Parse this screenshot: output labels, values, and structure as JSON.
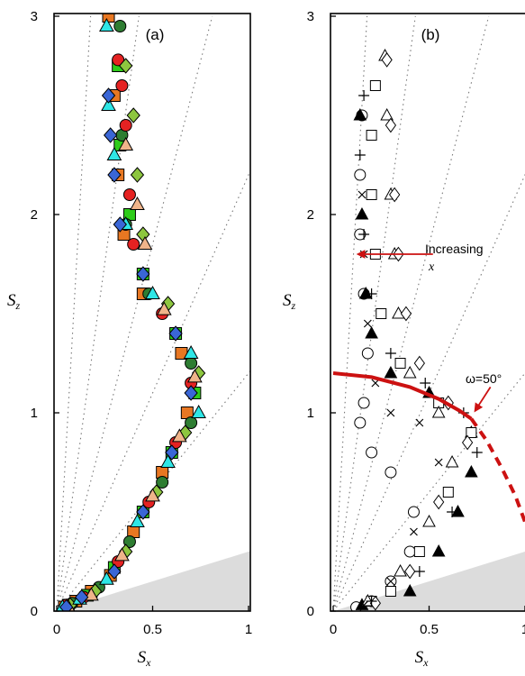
{
  "chart_data": [
    {
      "type": "scatter",
      "panel_label": "(a)",
      "xlabel": "S",
      "xlabel_sub": "x",
      "ylabel": "S",
      "ylabel_sub": "z",
      "xlim": [
        0,
        1
      ],
      "ylim": [
        0,
        3
      ],
      "xticks": [
        "0",
        "0.5",
        "1"
      ],
      "yticks": [
        "0",
        "1",
        "2",
        "3"
      ],
      "gray_sector_slope": 0.3,
      "ray_slopes": [
        1.2,
        2.2,
        3.7,
        7.0,
        17.0
      ],
      "series": [
        {
          "marker": "square",
          "fill": "#e87722",
          "points": [
            [
              0.04,
              0.02
            ],
            [
              0.1,
              0.05
            ],
            [
              0.18,
              0.1
            ],
            [
              0.28,
              0.18
            ],
            [
              0.4,
              0.4
            ],
            [
              0.55,
              0.7
            ],
            [
              0.68,
              1.0
            ],
            [
              0.65,
              1.3
            ],
            [
              0.45,
              1.6
            ],
            [
              0.35,
              1.9
            ],
            [
              0.32,
              2.2
            ],
            [
              0.3,
              2.6
            ],
            [
              0.27,
              3.0
            ]
          ]
        },
        {
          "marker": "square",
          "fill": "#2ecc1a",
          "points": [
            [
              0.06,
              0.03
            ],
            [
              0.16,
              0.08
            ],
            [
              0.3,
              0.22
            ],
            [
              0.45,
              0.5
            ],
            [
              0.6,
              0.8
            ],
            [
              0.72,
              1.1
            ],
            [
              0.62,
              1.4
            ],
            [
              0.45,
              1.7
            ],
            [
              0.38,
              2.0
            ],
            [
              0.33,
              2.35
            ],
            [
              0.32,
              2.75
            ]
          ]
        },
        {
          "marker": "circle",
          "fill": "#2e7d32",
          "points": [
            [
              0.08,
              0.04
            ],
            [
              0.22,
              0.12
            ],
            [
              0.38,
              0.35
            ],
            [
              0.55,
              0.65
            ],
            [
              0.7,
              0.95
            ],
            [
              0.7,
              1.25
            ],
            [
              0.48,
              1.6
            ],
            [
              0.36,
              1.95
            ],
            [
              0.34,
              2.4
            ],
            [
              0.33,
              2.95
            ]
          ]
        },
        {
          "marker": "circle",
          "fill": "#e52222",
          "points": [
            [
              0.05,
              0.03
            ],
            [
              0.14,
              0.07
            ],
            [
              0.32,
              0.25
            ],
            [
              0.48,
              0.55
            ],
            [
              0.62,
              0.85
            ],
            [
              0.7,
              1.15
            ],
            [
              0.55,
              1.5
            ],
            [
              0.4,
              1.85
            ],
            [
              0.38,
              2.1
            ],
            [
              0.36,
              2.45
            ],
            [
              0.34,
              2.65
            ],
            [
              0.32,
              2.78
            ]
          ]
        },
        {
          "marker": "diamond",
          "fill": "#8dc63f",
          "points": [
            [
              0.07,
              0.03
            ],
            [
              0.2,
              0.1
            ],
            [
              0.36,
              0.3
            ],
            [
              0.52,
              0.6
            ],
            [
              0.67,
              0.9
            ],
            [
              0.74,
              1.2
            ],
            [
              0.58,
              1.55
            ],
            [
              0.45,
              1.9
            ],
            [
              0.42,
              2.2
            ],
            [
              0.4,
              2.5
            ],
            [
              0.36,
              2.75
            ]
          ]
        },
        {
          "marker": "triangle",
          "fill": "#f0b48a",
          "points": [
            [
              0.06,
              0.02
            ],
            [
              0.18,
              0.08
            ],
            [
              0.34,
              0.28
            ],
            [
              0.5,
              0.58
            ],
            [
              0.64,
              0.88
            ],
            [
              0.72,
              1.18
            ],
            [
              0.56,
              1.52
            ],
            [
              0.46,
              1.85
            ],
            [
              0.42,
              2.05
            ],
            [
              0.36,
              2.35
            ]
          ]
        },
        {
          "marker": "triangle",
          "fill": "#2ee6e6",
          "points": [
            [
              0.03,
              0.02
            ],
            [
              0.12,
              0.06
            ],
            [
              0.26,
              0.16
            ],
            [
              0.42,
              0.45
            ],
            [
              0.58,
              0.75
            ],
            [
              0.74,
              1.0
            ],
            [
              0.7,
              1.3
            ],
            [
              0.5,
              1.6
            ],
            [
              0.36,
              1.95
            ],
            [
              0.3,
              2.3
            ],
            [
              0.27,
              2.55
            ],
            [
              0.26,
              2.95
            ]
          ]
        },
        {
          "marker": "diamond",
          "fill": "#3a66d6",
          "points": [
            [
              0.05,
              0.02
            ],
            [
              0.13,
              0.07
            ],
            [
              0.3,
              0.2
            ],
            [
              0.45,
              0.5
            ],
            [
              0.6,
              0.8
            ],
            [
              0.7,
              1.1
            ],
            [
              0.62,
              1.4
            ],
            [
              0.45,
              1.7
            ],
            [
              0.33,
              1.95
            ],
            [
              0.3,
              2.2
            ],
            [
              0.28,
              2.4
            ],
            [
              0.27,
              2.6
            ]
          ]
        }
      ]
    },
    {
      "type": "scatter",
      "panel_label": "(b)",
      "xlabel": "S",
      "xlabel_sub": "x",
      "ylabel": "S",
      "ylabel_sub": "z",
      "xlim": [
        0,
        1
      ],
      "ylim": [
        0,
        3
      ],
      "xticks": [
        "0",
        "0.5",
        "1"
      ],
      "yticks": [
        "0",
        "1",
        "2",
        "3"
      ],
      "gray_sector_slope": 0.3,
      "ray_slopes": [
        1.2,
        2.2,
        3.7,
        7.0,
        17.0
      ],
      "series": [
        {
          "marker": "open-circle",
          "points": [
            [
              0.12,
              0.02
            ],
            [
              0.2,
              0.05
            ],
            [
              0.3,
              0.15
            ],
            [
              0.4,
              0.3
            ],
            [
              0.42,
              0.5
            ],
            [
              0.3,
              0.7
            ],
            [
              0.2,
              0.8
            ],
            [
              0.14,
              0.95
            ],
            [
              0.16,
              1.05
            ],
            [
              0.18,
              1.3
            ],
            [
              0.16,
              1.6
            ],
            [
              0.14,
              1.9
            ],
            [
              0.14,
              2.2
            ],
            [
              0.15,
              2.5
            ]
          ]
        },
        {
          "marker": "filled-triangle",
          "points": [
            [
              0.15,
              0.03
            ],
            [
              0.4,
              0.1
            ],
            [
              0.55,
              0.3
            ],
            [
              0.65,
              0.5
            ],
            [
              0.72,
              0.7
            ],
            [
              0.72,
              0.9
            ],
            [
              0.5,
              1.1
            ],
            [
              0.3,
              1.2
            ],
            [
              0.2,
              1.4
            ],
            [
              0.17,
              1.6
            ],
            [
              0.15,
              2.0
            ],
            [
              0.14,
              2.5
            ]
          ]
        },
        {
          "marker": "open-square",
          "points": [
            [
              0.2,
              0.05
            ],
            [
              0.3,
              0.1
            ],
            [
              0.45,
              0.3
            ],
            [
              0.6,
              0.6
            ],
            [
              0.72,
              0.9
            ],
            [
              0.55,
              1.05
            ],
            [
              0.35,
              1.25
            ],
            [
              0.25,
              1.5
            ],
            [
              0.22,
              1.8
            ],
            [
              0.2,
              2.1
            ],
            [
              0.2,
              2.4
            ],
            [
              0.22,
              2.65
            ]
          ]
        },
        {
          "marker": "open-triangle",
          "points": [
            [
              0.18,
              0.05
            ],
            [
              0.35,
              0.2
            ],
            [
              0.5,
              0.45
            ],
            [
              0.62,
              0.75
            ],
            [
              0.55,
              1.0
            ],
            [
              0.4,
              1.2
            ],
            [
              0.34,
              1.5
            ],
            [
              0.32,
              1.8
            ],
            [
              0.3,
              2.1
            ],
            [
              0.28,
              2.5
            ],
            [
              0.27,
              2.8
            ]
          ]
        },
        {
          "marker": "open-diamond",
          "points": [
            [
              0.22,
              0.04
            ],
            [
              0.4,
              0.2
            ],
            [
              0.55,
              0.55
            ],
            [
              0.7,
              0.85
            ],
            [
              0.6,
              1.05
            ],
            [
              0.45,
              1.25
            ],
            [
              0.38,
              1.5
            ],
            [
              0.34,
              1.8
            ],
            [
              0.32,
              2.1
            ],
            [
              0.3,
              2.45
            ],
            [
              0.28,
              2.78
            ]
          ]
        },
        {
          "marker": "plus",
          "points": [
            [
              0.2,
              0.05
            ],
            [
              0.45,
              0.2
            ],
            [
              0.62,
              0.5
            ],
            [
              0.75,
              0.8
            ],
            [
              0.68,
              1.0
            ],
            [
              0.48,
              1.15
            ],
            [
              0.3,
              1.3
            ],
            [
              0.2,
              1.6
            ],
            [
              0.16,
              1.9
            ],
            [
              0.14,
              2.3
            ],
            [
              0.16,
              2.6
            ]
          ]
        },
        {
          "marker": "cross",
          "points": [
            [
              0.16,
              0.03
            ],
            [
              0.3,
              0.15
            ],
            [
              0.42,
              0.4
            ],
            [
              0.55,
              0.75
            ],
            [
              0.45,
              0.95
            ],
            [
              0.3,
              1.0
            ],
            [
              0.22,
              1.15
            ],
            [
              0.18,
              1.45
            ],
            [
              0.16,
              1.8
            ],
            [
              0.15,
              2.1
            ]
          ]
        }
      ],
      "fitted_curve": {
        "color": "#cc1111",
        "solid_points": [
          [
            0.0,
            1.2
          ],
          [
            0.2,
            1.18
          ],
          [
            0.4,
            1.13
          ],
          [
            0.55,
            1.07
          ],
          [
            0.66,
            1.01
          ],
          [
            0.72,
            0.97
          ]
        ],
        "dashed_points": [
          [
            0.72,
            0.97
          ],
          [
            0.8,
            0.86
          ],
          [
            0.88,
            0.72
          ],
          [
            0.95,
            0.58
          ],
          [
            1.0,
            0.45
          ]
        ]
      },
      "annotations": {
        "increasing_line1": "Increasing",
        "increasing_line2": "x",
        "increasing_arrow": {
          "from": [
            0.52,
            1.8
          ],
          "to": [
            0.13,
            1.8
          ],
          "color": "#cc1111"
        },
        "omega_label": "ω=50°",
        "omega_arrow": {
          "from": [
            0.82,
            1.13
          ],
          "to": [
            0.74,
            1.01
          ],
          "color": "#cc1111"
        }
      }
    }
  ]
}
